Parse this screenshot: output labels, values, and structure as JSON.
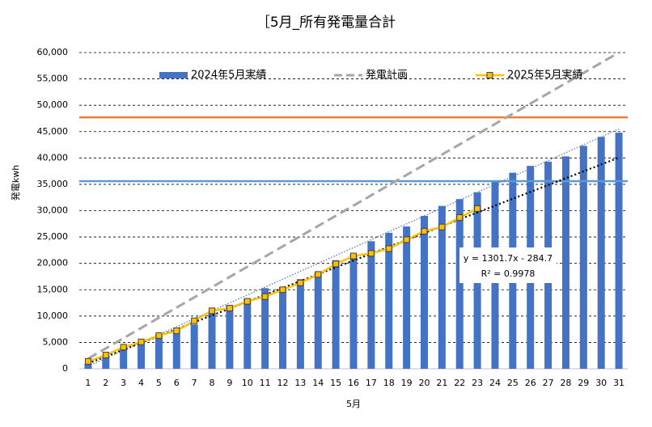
{
  "chart_data": {
    "type": "combo",
    "title": "［5月_所有発電量合計",
    "xlabel": "5月",
    "ylabel": "発電kwh",
    "categories": [
      "1",
      "2",
      "3",
      "4",
      "5",
      "6",
      "7",
      "8",
      "9",
      "10",
      "11",
      "12",
      "13",
      "14",
      "15",
      "16",
      "17",
      "18",
      "19",
      "20",
      "21",
      "22",
      "23",
      "24",
      "25",
      "26",
      "27",
      "28",
      "29",
      "30",
      "31"
    ],
    "series": [
      {
        "name": "2024年5月実績",
        "type": "bar",
        "color": "#4472c4",
        "values": [
          1000,
          2400,
          3800,
          5000,
          6500,
          7300,
          8400,
          10700,
          12000,
          13300,
          15300,
          15500,
          17000,
          18300,
          20600,
          21600,
          24200,
          25800,
          27000,
          29000,
          30900,
          32200,
          33500,
          35700,
          37200,
          38500,
          39300,
          40300,
          42300,
          44000,
          44800
        ]
      },
      {
        "name": "発電計画",
        "type": "dashed",
        "color": "#a6a6a6",
        "values": [
          1935,
          3871,
          5806,
          7742,
          9677,
          11613,
          13548,
          15484,
          17419,
          19355,
          21290,
          23226,
          25161,
          27097,
          29032,
          30968,
          32903,
          34839,
          36774,
          38710,
          40645,
          42581,
          44516,
          46452,
          48387,
          50323,
          52258,
          54194,
          56129,
          58065,
          60000
        ]
      },
      {
        "name": "2025年5月実績",
        "type": "line",
        "color": "#ffc000",
        "values": [
          1400,
          2600,
          4100,
          5100,
          6300,
          7200,
          9100,
          11000,
          11500,
          12800,
          13700,
          15000,
          16300,
          17900,
          19900,
          21400,
          21900,
          22800,
          24500,
          26100,
          26900,
          28700,
          30400,
          null,
          null,
          null,
          null,
          null,
          null,
          null,
          null
        ]
      }
    ],
    "trendlines": [
      {
        "color": "#4472c4",
        "x": [
          1,
          31
        ],
        "values": [
          500,
          45500
        ]
      },
      {
        "color": "#000000",
        "x": [
          1,
          31
        ],
        "values": [
          1017,
          40068
        ],
        "equation": "y = 1301.7x  - 284.7",
        "r2": "R² = 0.9978"
      }
    ],
    "reference_lines": [
      {
        "color": "#ed7d31",
        "value": 47700
      },
      {
        "color": "#5b9bd5",
        "value": 35600
      }
    ],
    "ylim": [
      0,
      60000
    ],
    "yticks": [
      0,
      {
        "value": 5000,
        "label": "5,000"
      },
      {
        "value": 10000,
        "label": "10,000"
      },
      {
        "value": 15000,
        "label": "15,000"
      },
      {
        "value": 20000,
        "label": "20,000"
      },
      {
        "value": 25000,
        "label": "25,000"
      },
      {
        "value": 30000,
        "label": "30,000"
      },
      {
        "value": 35000,
        "label": "35,000"
      },
      {
        "value": 40000,
        "label": "40,000"
      },
      {
        "value": 45000,
        "label": "45,000"
      },
      {
        "value": 50000,
        "label": "50,000"
      },
      {
        "value": 55000,
        "label": "55,000"
      },
      {
        "value": 60000,
        "label": "60,000"
      }
    ],
    "grid": true,
    "legend": "top"
  }
}
